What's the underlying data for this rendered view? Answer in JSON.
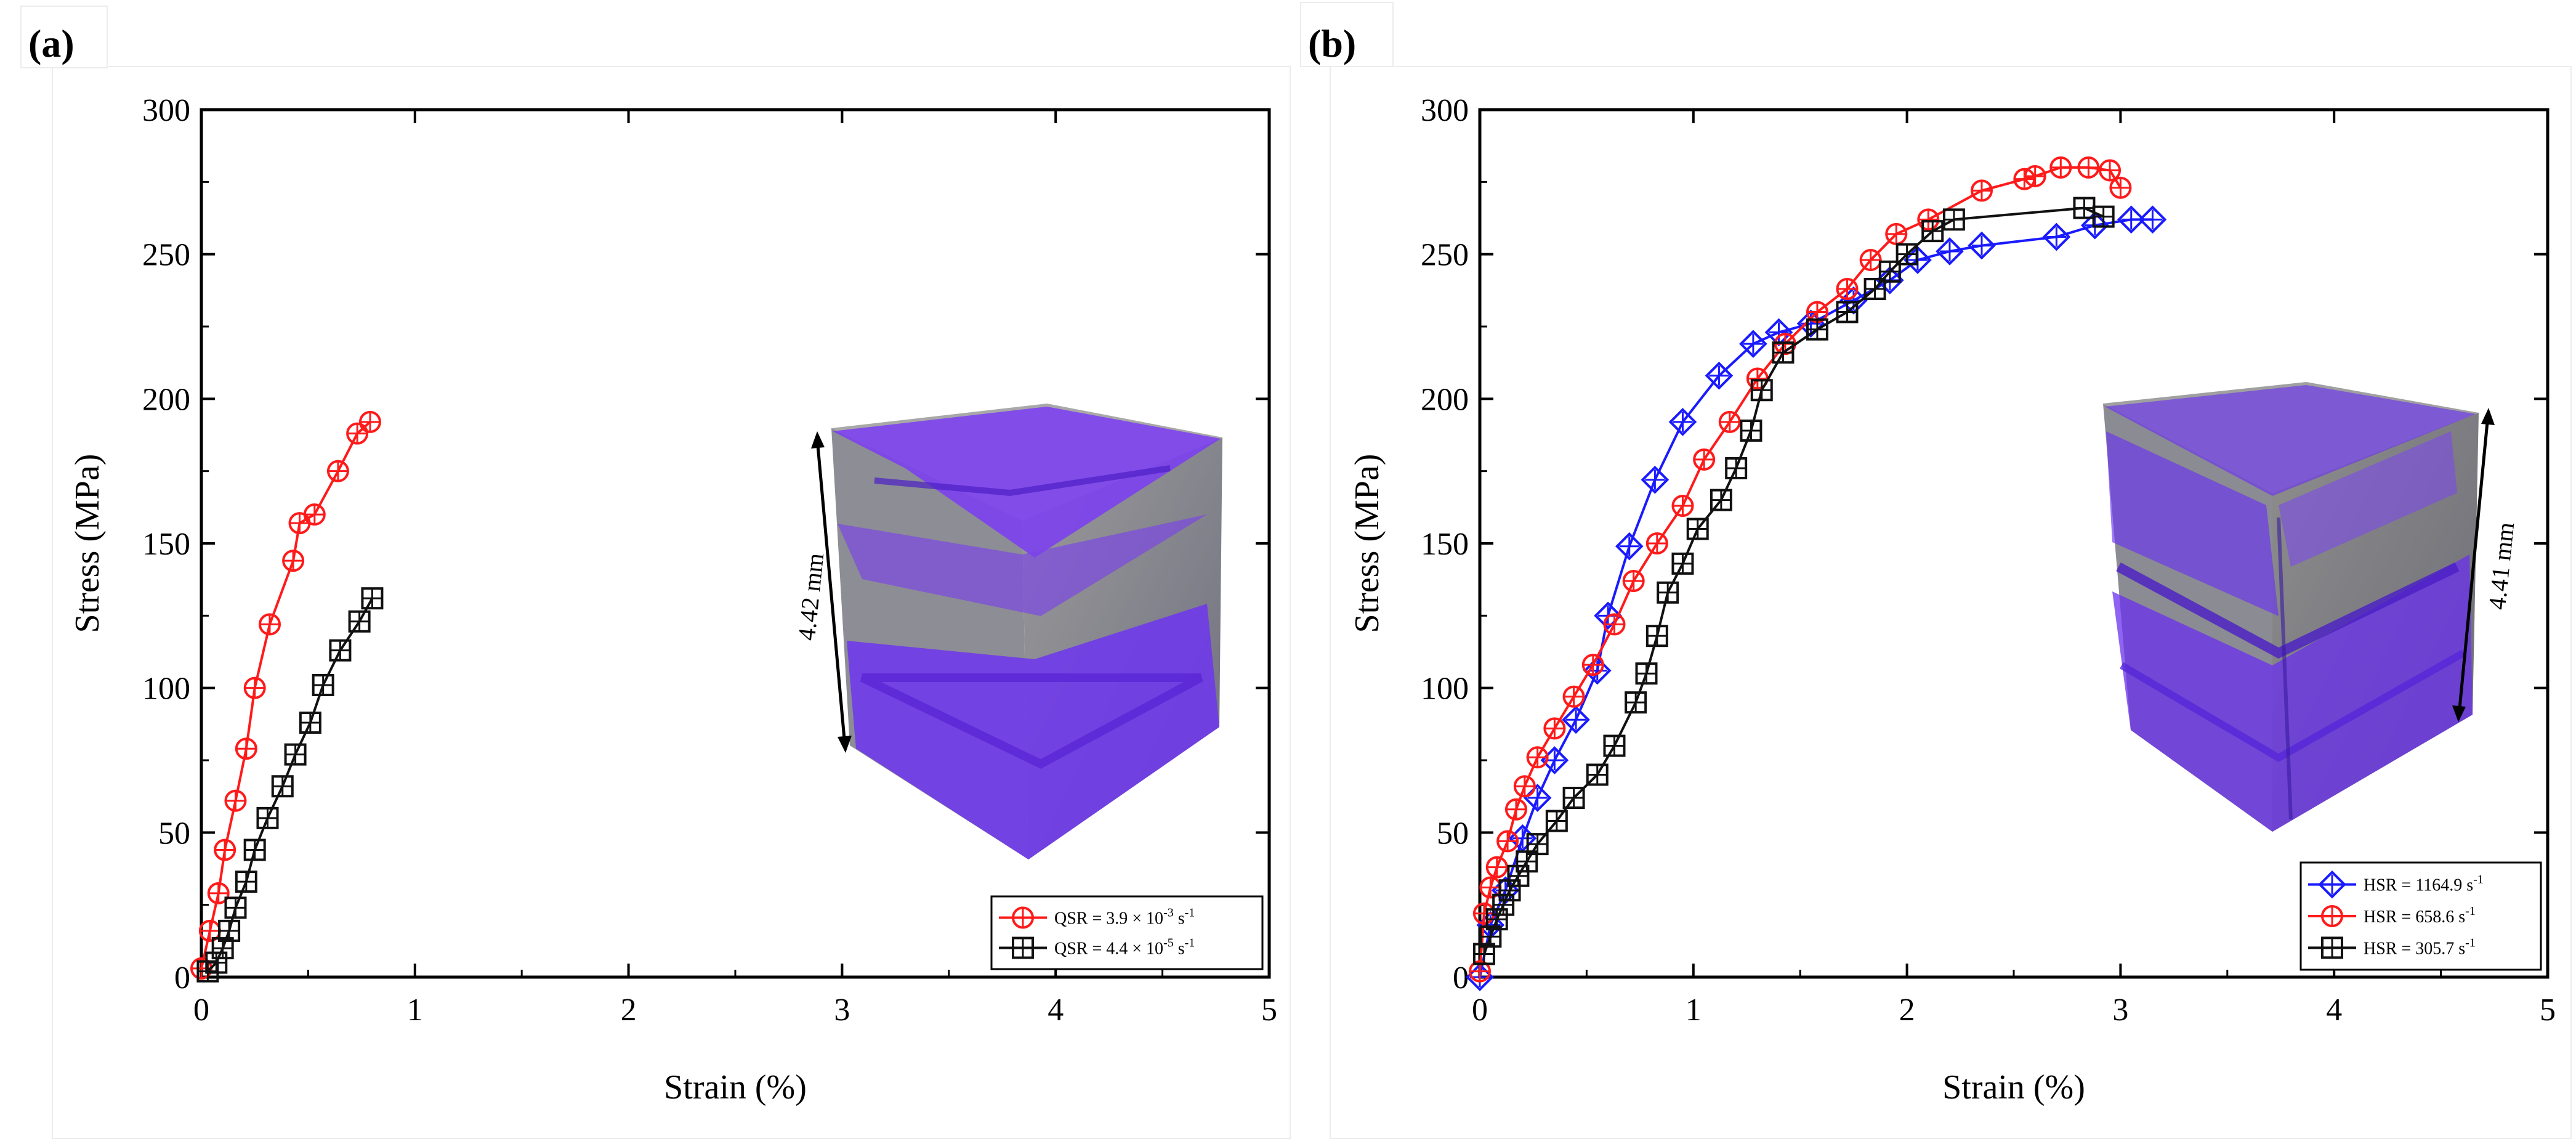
{
  "figure": {
    "panels": [
      {
        "label": "(a)",
        "dimension_label": "4.42 mm"
      },
      {
        "label": "(b)",
        "dimension_label": "4.41 mm"
      }
    ]
  },
  "chart_data": [
    {
      "type": "line",
      "panel": "(a)",
      "title": "",
      "xlabel": "Strain (%)",
      "ylabel": "Stress (MPa)",
      "xlim": [
        0,
        5
      ],
      "ylim": [
        0,
        300
      ],
      "xticks": [
        0,
        1,
        2,
        3,
        4,
        5
      ],
      "yticks": [
        0,
        50,
        100,
        150,
        200,
        250,
        300
      ],
      "legend_position": "bottom-right",
      "series": [
        {
          "name": "QSR = 3.9 × 10⁻³ s⁻¹",
          "legend": {
            "base": "QSR = 3.9 × 10",
            "exp": "-3",
            "unit": " s",
            "unit_exp": "-1"
          },
          "color": "#ff1a1a",
          "marker": "circle-cross",
          "x": [
            0.0,
            0.04,
            0.08,
            0.11,
            0.16,
            0.21,
            0.25,
            0.32,
            0.43,
            0.46,
            0.53,
            0.64,
            0.73,
            0.79
          ],
          "y": [
            3,
            16,
            29,
            44,
            61,
            79,
            100,
            122,
            144,
            157,
            160,
            175,
            188,
            192
          ]
        },
        {
          "name": "QSR = 4.4 × 10⁻⁵ s⁻¹",
          "legend": {
            "base": "QSR = 4.4 × 10",
            "exp": "-5",
            "unit": " s",
            "unit_exp": "-1"
          },
          "color": "#111111",
          "marker": "square-cross",
          "x": [
            0.03,
            0.07,
            0.1,
            0.13,
            0.16,
            0.21,
            0.25,
            0.31,
            0.38,
            0.44,
            0.51,
            0.57,
            0.65,
            0.74,
            0.8
          ],
          "y": [
            2,
            5,
            10,
            16,
            24,
            33,
            44,
            55,
            66,
            77,
            88,
            101,
            113,
            123,
            131
          ]
        }
      ]
    },
    {
      "type": "line",
      "panel": "(b)",
      "title": "",
      "xlabel": "Strain (%)",
      "ylabel": "Stress (MPa)",
      "xlim": [
        0,
        5
      ],
      "ylim": [
        0,
        300
      ],
      "xticks": [
        0,
        1,
        2,
        3,
        4,
        5
      ],
      "yticks": [
        0,
        50,
        100,
        150,
        200,
        250,
        300
      ],
      "legend_position": "bottom-right",
      "series": [
        {
          "name": "HSR = 1164.9 s⁻¹",
          "legend": {
            "base": "HSR = 1164.9 s",
            "exp": "-1",
            "unit": "",
            "unit_exp": ""
          },
          "color": "#1a1aff",
          "marker": "diamond-cross",
          "x": [
            0.0,
            0.05,
            0.12,
            0.2,
            0.27,
            0.35,
            0.45,
            0.55,
            0.6,
            0.7,
            0.82,
            0.95,
            1.12,
            1.28,
            1.4,
            1.55,
            1.75,
            1.92,
            2.05,
            2.2,
            2.35,
            2.7,
            2.88,
            3.05,
            3.15
          ],
          "y": [
            0,
            18,
            30,
            48,
            62,
            75,
            89,
            106,
            125,
            149,
            172,
            192,
            208,
            219,
            223,
            226,
            234,
            241,
            248,
            251,
            253,
            256,
            260,
            262,
            262
          ]
        },
        {
          "name": "HSR = 658.6 s⁻¹",
          "legend": {
            "base": "HSR = 658.6 s",
            "exp": "-1",
            "unit": "",
            "unit_exp": ""
          },
          "color": "#ff1a1a",
          "marker": "circle-cross",
          "x": [
            0.0,
            0.02,
            0.05,
            0.08,
            0.13,
            0.17,
            0.21,
            0.27,
            0.35,
            0.44,
            0.53,
            0.63,
            0.72,
            0.83,
            0.95,
            1.05,
            1.17,
            1.3,
            1.43,
            1.58,
            1.72,
            1.83,
            1.95,
            2.1,
            2.35,
            2.55,
            2.6,
            2.72,
            2.85,
            2.95,
            3.0
          ],
          "y": [
            2,
            22,
            31,
            38,
            47,
            58,
            66,
            76,
            86,
            97,
            108,
            122,
            137,
            150,
            163,
            179,
            192,
            207,
            219,
            230,
            238,
            248,
            257,
            262,
            272,
            276,
            277,
            280,
            280,
            279,
            273
          ]
        },
        {
          "name": "HSR = 305.7 s⁻¹",
          "legend": {
            "base": "HSR = 305.7 s",
            "exp": "-1",
            "unit": "",
            "unit_exp": ""
          },
          "color": "#111111",
          "marker": "square-cross",
          "x": [
            0.02,
            0.05,
            0.08,
            0.11,
            0.14,
            0.18,
            0.22,
            0.27,
            0.36,
            0.44,
            0.55,
            0.63,
            0.73,
            0.78,
            0.83,
            0.88,
            0.95,
            1.02,
            1.13,
            1.2,
            1.27,
            1.32,
            1.42,
            1.58,
            1.72,
            1.85,
            1.92,
            2.0,
            2.12,
            2.22,
            2.83,
            2.92
          ],
          "y": [
            8,
            14,
            20,
            25,
            30,
            35,
            40,
            46,
            54,
            62,
            70,
            80,
            95,
            105,
            118,
            133,
            143,
            155,
            165,
            176,
            189,
            203,
            216,
            224,
            230,
            238,
            244,
            250,
            258,
            262,
            266,
            263
          ]
        }
      ]
    }
  ]
}
